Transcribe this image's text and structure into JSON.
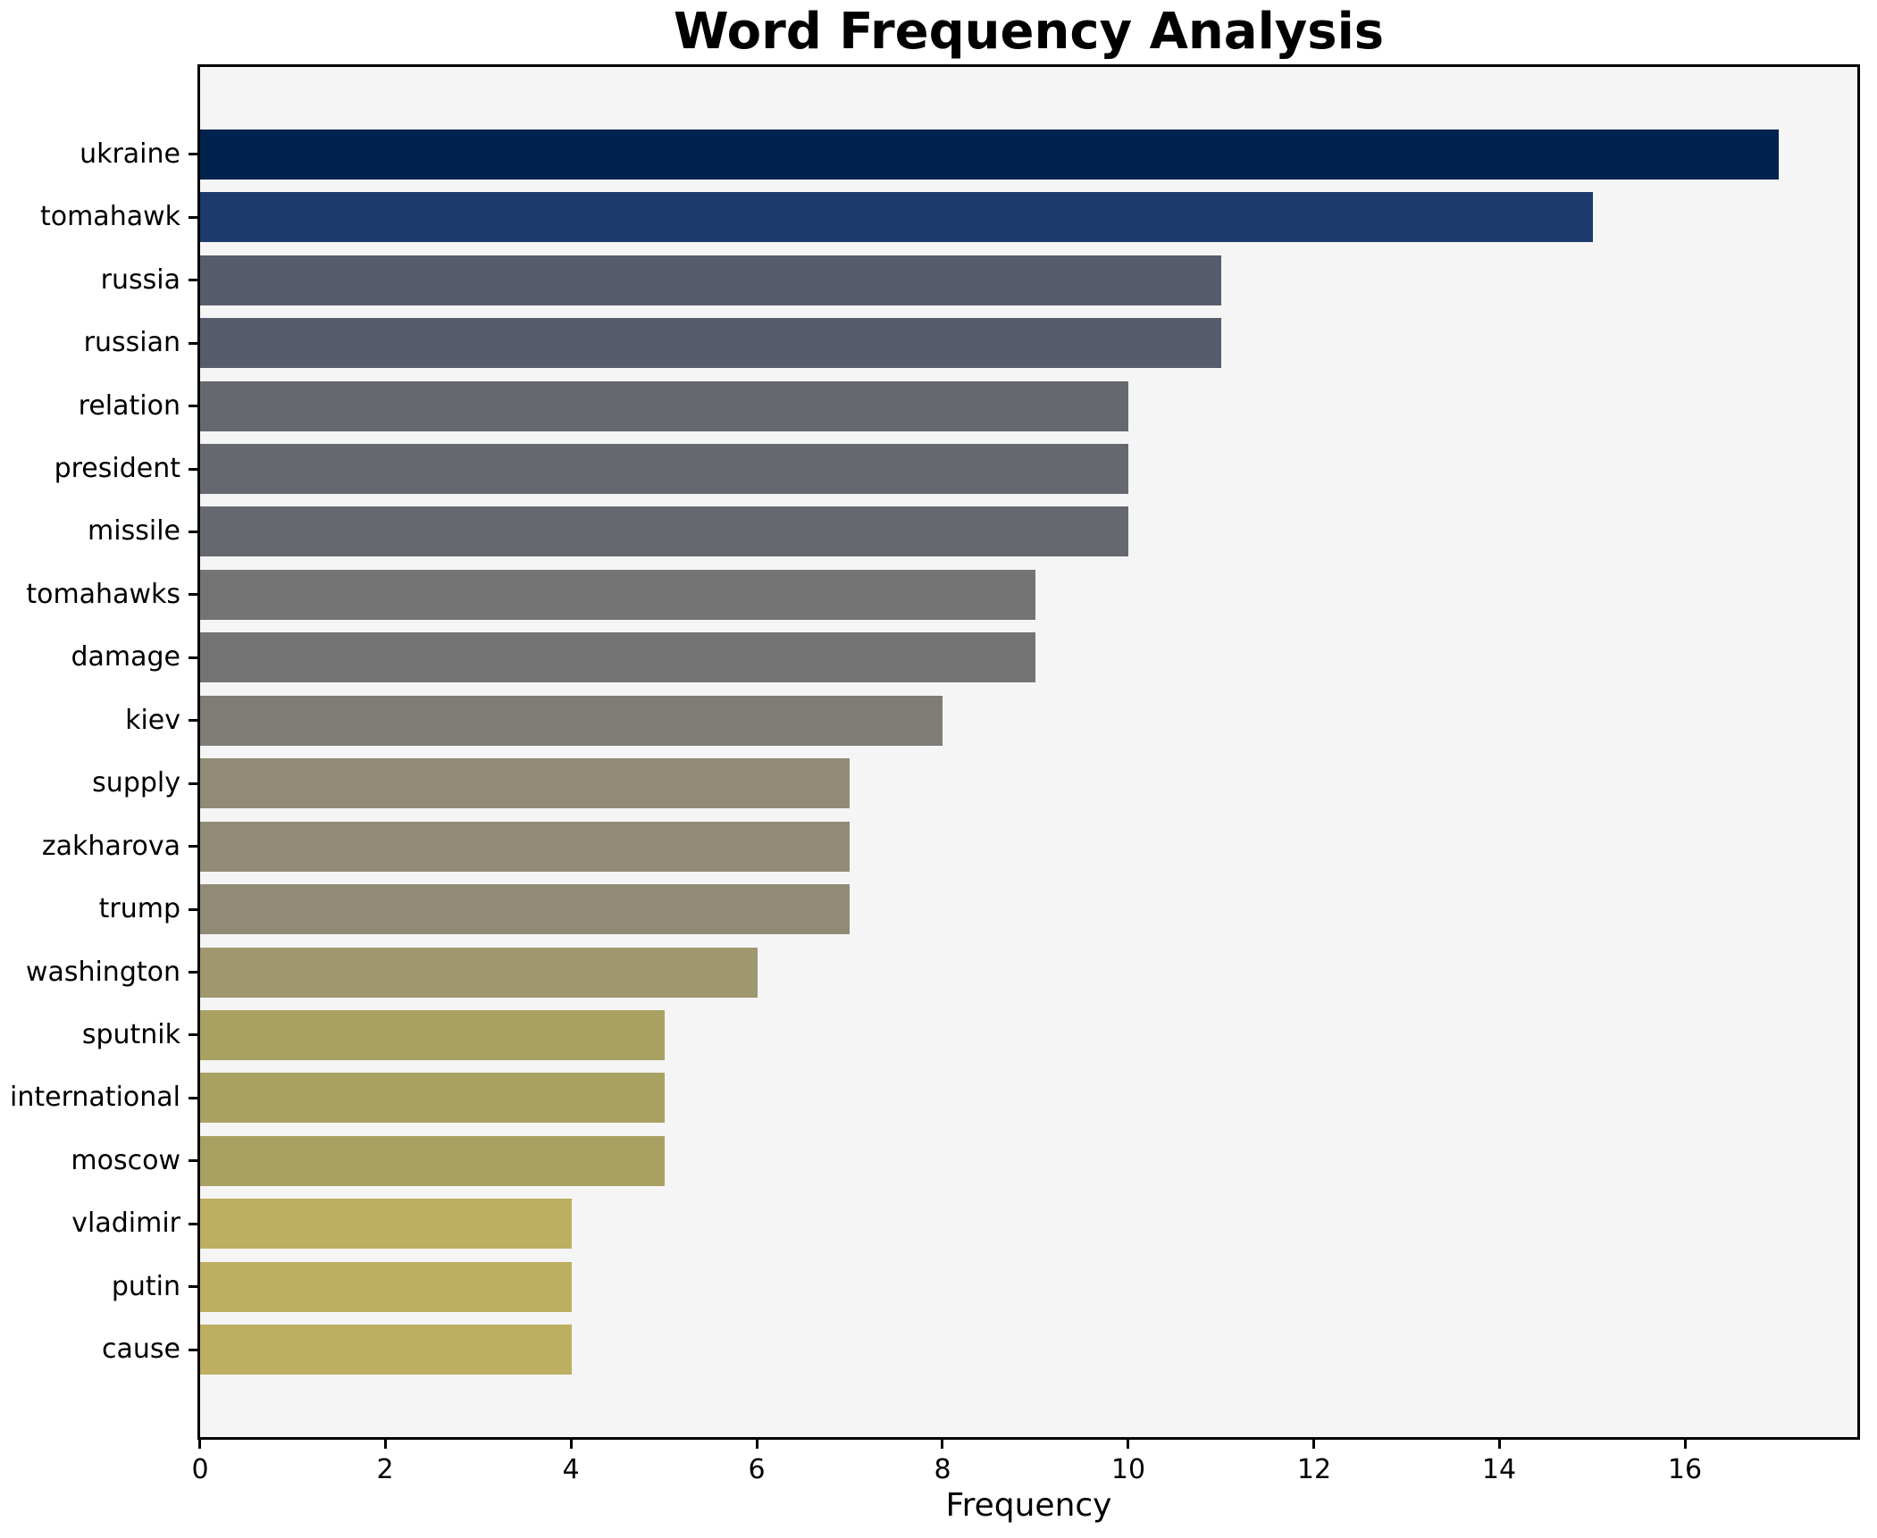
{
  "chart_data": {
    "type": "bar",
    "orientation": "horizontal",
    "title": "Word Frequency Analysis",
    "xlabel": "Frequency",
    "ylabel": "",
    "categories": [
      "ukraine",
      "tomahawk",
      "russia",
      "russian",
      "relation",
      "president",
      "missile",
      "tomahawks",
      "damage",
      "kiev",
      "supply",
      "zakharova",
      "trump",
      "washington",
      "sputnik",
      "international",
      "moscow",
      "vladimir",
      "putin",
      "cause"
    ],
    "values": [
      17,
      15,
      11,
      11,
      10,
      10,
      10,
      9,
      9,
      8,
      7,
      7,
      7,
      6,
      5,
      5,
      5,
      4,
      4,
      4
    ],
    "bar_colors": [
      "#00224e",
      "#1d3a6d",
      "#565c6b",
      "#565c6b",
      "#666870",
      "#666870",
      "#666870",
      "#747475",
      "#747475",
      "#7f7c75",
      "#918b76",
      "#918b76",
      "#918b76",
      "#9f986e",
      "#a8a162",
      "#a8a162",
      "#a8a162",
      "#bdae61",
      "#bdae61",
      "#bdae61"
    ],
    "xlim": [
      0,
      17.85
    ],
    "xticks": [
      0,
      2,
      4,
      6,
      8,
      10,
      12,
      14,
      16
    ],
    "grid": false,
    "legend": null,
    "plot_background": "#f5f5f6",
    "figure_background": "#ffffff",
    "spine_color": "#000000",
    "text_color": "#000000",
    "bar_height_fraction": 0.8
  }
}
